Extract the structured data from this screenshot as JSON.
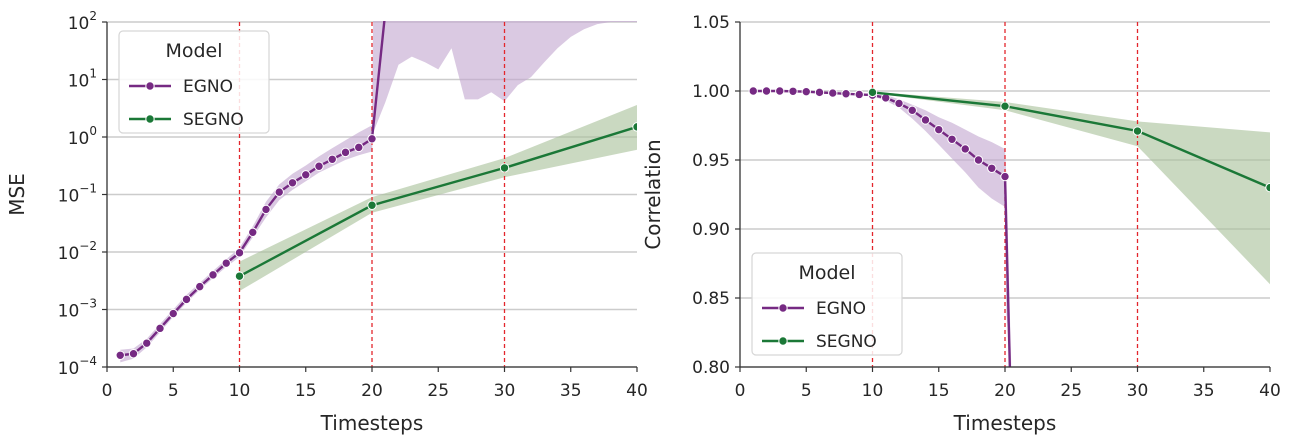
{
  "chart_data": [
    {
      "type": "line",
      "xlabel": "Timesteps",
      "ylabel": "MSE",
      "yscale": "log",
      "xlim": [
        0,
        40
      ],
      "ylim": [
        0.0001,
        100
      ],
      "xticks": [
        "0",
        "5",
        "10",
        "15",
        "20",
        "25",
        "30",
        "35",
        "40"
      ],
      "xtick_values": [
        0,
        5,
        10,
        15,
        20,
        25,
        30,
        35,
        40
      ],
      "yticks": [
        {
          "base": "10",
          "exp": "−4",
          "value": 0.0001
        },
        {
          "base": "10",
          "exp": "−3",
          "value": 0.001
        },
        {
          "base": "10",
          "exp": "−2",
          "value": 0.01
        },
        {
          "base": "10",
          "exp": "−1",
          "value": 0.1
        },
        {
          "base": "10",
          "exp": "0",
          "value": 1
        },
        {
          "base": "10",
          "exp": "1",
          "value": 10
        },
        {
          "base": "10",
          "exp": "2",
          "value": 100
        }
      ],
      "grid": "horizontal",
      "vlines": [
        10,
        20,
        30
      ],
      "legend": {
        "title": "Model",
        "position": "top-left"
      },
      "series": [
        {
          "name": "EGNO",
          "color": "#762a83",
          "band_color": "#c2a5cf",
          "x": [
            1,
            2,
            3,
            4,
            5,
            6,
            7,
            8,
            9,
            10,
            11,
            12,
            13,
            14,
            15,
            16,
            17,
            18,
            19,
            20,
            21
          ],
          "y": [
            0.00016,
            0.00017,
            0.00026,
            0.00047,
            0.00085,
            0.0015,
            0.0025,
            0.004,
            0.0064,
            0.0097,
            0.022,
            0.055,
            0.11,
            0.16,
            0.22,
            0.31,
            0.41,
            0.54,
            0.66,
            0.93,
            150
          ],
          "band_x": [
            1,
            2,
            3,
            4,
            5,
            6,
            7,
            8,
            9,
            10,
            11,
            12,
            13,
            14,
            15,
            16,
            17,
            18,
            19,
            20,
            20.1,
            21,
            22,
            23,
            24,
            25,
            26,
            27,
            28,
            29,
            30,
            31,
            32,
            33,
            34,
            35,
            36,
            37,
            38,
            39,
            40
          ],
          "band_low": [
            0.00012,
            0.00014,
            0.00022,
            0.0004,
            0.00075,
            0.0013,
            0.0022,
            0.0035,
            0.0055,
            0.0082,
            0.018,
            0.04,
            0.08,
            0.12,
            0.17,
            0.24,
            0.31,
            0.4,
            0.48,
            0.56,
            1.2,
            20,
            80,
            150,
            200,
            200,
            200,
            200,
            200,
            200,
            200,
            200,
            200,
            200,
            200,
            200,
            200,
            200,
            200,
            200,
            200
          ],
          "band_high": [
            0.0002,
            0.00021,
            0.00031,
            0.00056,
            0.001,
            0.0018,
            0.0029,
            0.0047,
            0.0075,
            0.0118,
            0.028,
            0.075,
            0.15,
            0.23,
            0.32,
            0.46,
            0.64,
            0.88,
            1.2,
            1.6,
            200,
            200,
            200,
            200,
            200,
            200,
            200,
            200,
            200,
            200,
            200,
            200,
            200,
            200,
            200,
            200,
            200,
            200,
            200,
            200,
            200
          ],
          "band_low_override": [
            [
              20.1,
              1.2
            ],
            [
              21,
              4
            ],
            [
              22,
              18
            ],
            [
              23,
              25
            ],
            [
              24,
              20
            ],
            [
              25,
              15
            ],
            [
              26,
              35
            ],
            [
              27,
              4.5
            ],
            [
              28,
              4.5
            ],
            [
              29,
              6
            ],
            [
              30,
              4.2
            ],
            [
              31,
              8
            ],
            [
              32,
              11
            ],
            [
              33,
              20
            ],
            [
              34,
              35
            ],
            [
              35,
              55
            ],
            [
              36,
              75
            ],
            [
              37,
              92
            ],
            [
              38,
              100
            ],
            [
              39,
              100
            ],
            [
              40,
              100
            ]
          ]
        },
        {
          "name": "SEGNO",
          "color": "#1b7837",
          "band_color": "#a6bf97",
          "x": [
            10,
            20,
            30,
            40
          ],
          "y": [
            0.0038,
            0.065,
            0.29,
            1.5
          ],
          "band_x": [
            10,
            20,
            30,
            40
          ],
          "band_low": [
            0.0021,
            0.048,
            0.2,
            0.6
          ],
          "band_high": [
            0.0068,
            0.09,
            0.43,
            3.6
          ]
        }
      ]
    },
    {
      "type": "line",
      "xlabel": "Timesteps",
      "ylabel": "Correlation",
      "xlim": [
        0,
        40
      ],
      "ylim": [
        0.8,
        1.05
      ],
      "xticks": [
        "0",
        "5",
        "10",
        "15",
        "20",
        "25",
        "30",
        "35",
        "40"
      ],
      "xtick_values": [
        0,
        5,
        10,
        15,
        20,
        25,
        30,
        35,
        40
      ],
      "yticks": [
        "0.80",
        "0.85",
        "0.90",
        "0.95",
        "1.00",
        "1.05"
      ],
      "ytick_values": [
        0.8,
        0.85,
        0.9,
        0.95,
        1.0,
        1.05
      ],
      "grid": "horizontal",
      "vlines": [
        10,
        20,
        30
      ],
      "legend": {
        "title": "Model",
        "position": "bottom-left"
      },
      "series": [
        {
          "name": "EGNO",
          "color": "#762a83",
          "band_color": "#c2a5cf",
          "x": [
            1,
            2,
            3,
            4,
            5,
            6,
            7,
            8,
            9,
            10,
            11,
            12,
            13,
            14,
            15,
            16,
            17,
            18,
            19,
            20,
            20.5
          ],
          "y": [
            1.0,
            1.0,
            1.0,
            0.9998,
            0.9995,
            0.999,
            0.9985,
            0.998,
            0.9975,
            0.997,
            0.995,
            0.991,
            0.986,
            0.979,
            0.972,
            0.965,
            0.958,
            0.95,
            0.944,
            0.938,
            0.75
          ],
          "band_x": [
            1,
            2,
            3,
            4,
            5,
            6,
            7,
            8,
            9,
            10,
            11,
            12,
            13,
            14,
            15,
            16,
            17,
            18,
            19,
            20,
            20.1,
            20.5
          ],
          "band_low": [
            0.9995,
            0.9995,
            0.9995,
            0.9993,
            0.999,
            0.9985,
            0.998,
            0.9975,
            0.9968,
            0.9962,
            0.993,
            0.988,
            0.98,
            0.971,
            0.961,
            0.951,
            0.941,
            0.93,
            0.922,
            0.916,
            0.84,
            0.79
          ],
          "band_high": [
            1.0005,
            1.0005,
            1.0005,
            1.0003,
            1.0,
            0.9995,
            0.999,
            0.9985,
            0.998,
            0.9978,
            0.997,
            0.994,
            0.99,
            0.986,
            0.981,
            0.977,
            0.972,
            0.967,
            0.963,
            0.958,
            0.94,
            0.79
          ]
        },
        {
          "name": "SEGNO",
          "color": "#1b7837",
          "band_color": "#a6bf97",
          "x": [
            10,
            20,
            30,
            40
          ],
          "y": [
            0.999,
            0.989,
            0.971,
            0.93
          ],
          "band_x": [
            10,
            20,
            30,
            40
          ],
          "band_low": [
            0.9985,
            0.986,
            0.96,
            0.86
          ],
          "band_high": [
            0.9995,
            0.992,
            0.978,
            0.97
          ]
        }
      ]
    }
  ]
}
